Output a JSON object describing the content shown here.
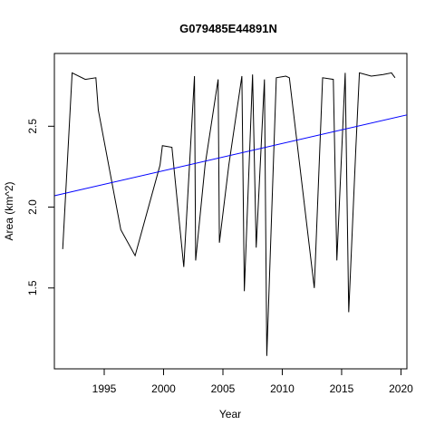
{
  "chart_data": {
    "type": "line",
    "title": "G079485E44891N",
    "xlabel": "Year",
    "ylabel": "Area (km^2)",
    "xlim": [
      1990.8,
      2020.5
    ],
    "ylim": [
      1.0,
      2.95
    ],
    "x_ticks": [
      1995,
      2000,
      2005,
      2010,
      2015,
      2020
    ],
    "y_ticks": [
      1.5,
      2.0,
      2.5
    ],
    "grid": false,
    "legend": "none",
    "series": [
      {
        "color": "#000000",
        "x": [
          1991.5,
          1992.3,
          1993.4,
          1994.3,
          1994.5,
          1996.4,
          1997.6,
          1999.7,
          1999.9,
          2000.7,
          2001.7,
          2002.6,
          2002.7,
          2003.5,
          2004.6,
          2004.7,
          2005.5,
          2006.6,
          2006.8,
          2007.5,
          2007.8,
          2008.5,
          2008.7,
          2009.5,
          2010.3,
          2010.6,
          2012.7,
          2013.4,
          2014.3,
          2014.6,
          2015.3,
          2015.6,
          2016.2,
          2016.5,
          2017.5,
          2018.5,
          2019.2,
          2019.5
        ],
        "y": [
          1.74,
          2.83,
          2.79,
          2.8,
          2.6,
          1.86,
          1.7,
          2.26,
          2.38,
          2.37,
          1.63,
          2.81,
          1.67,
          2.26,
          2.79,
          1.78,
          2.26,
          2.81,
          1.48,
          2.82,
          1.75,
          2.79,
          1.08,
          2.8,
          2.81,
          2.8,
          1.5,
          2.8,
          2.79,
          1.67,
          2.83,
          1.35,
          2.37,
          2.83,
          2.81,
          2.82,
          2.83,
          2.8
        ]
      },
      {
        "color": "#0000ff",
        "x": [
          1990.8,
          2020.5
        ],
        "y": [
          2.07,
          2.57
        ]
      }
    ]
  }
}
